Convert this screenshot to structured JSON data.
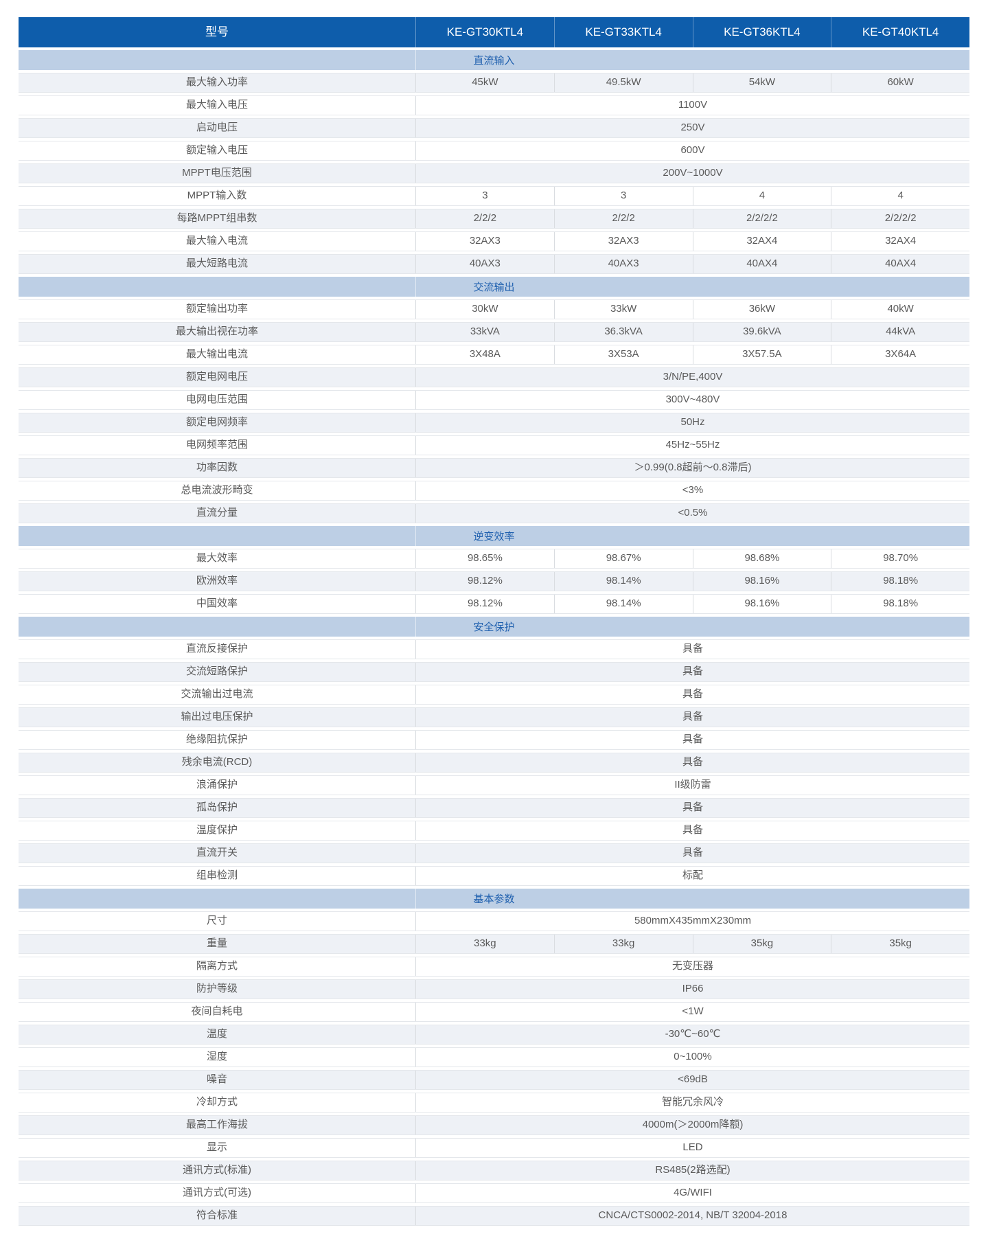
{
  "colors": {
    "header_bg": "#0e5dab",
    "header_text": "#ffffff",
    "section_bg": "#bdcfe5",
    "section_text": "#1e5fae",
    "row_alt_bg": "#eef1f6",
    "row_bg": "#ffffff",
    "text": "#5a5a5a",
    "divider": "#d9dce0"
  },
  "table": {
    "header": {
      "label": "型号",
      "models": [
        "KE-GT30KTL4",
        "KE-GT33KTL4",
        "KE-GT36KTL4",
        "KE-GT40KTL4"
      ]
    },
    "sections": [
      {
        "title": "直流输入",
        "rows": [
          {
            "label": "最大输入功率",
            "values": [
              "45kW",
              "49.5kW",
              "54kW",
              "60kW"
            ]
          },
          {
            "label": "最大输入电压",
            "values": [
              "1100V"
            ]
          },
          {
            "label": "启动电压",
            "values": [
              "250V"
            ]
          },
          {
            "label": "额定输入电压",
            "values": [
              "600V"
            ]
          },
          {
            "label": "MPPT电压范围",
            "values": [
              "200V~1000V"
            ]
          },
          {
            "label": "MPPT输入数",
            "values": [
              "3",
              "3",
              "4",
              "4"
            ]
          },
          {
            "label": "每路MPPT组串数",
            "values": [
              "2/2/2",
              "2/2/2",
              "2/2/2/2",
              "2/2/2/2"
            ]
          },
          {
            "label": "最大输入电流",
            "values": [
              "32AX3",
              "32AX3",
              "32AX4",
              "32AX4"
            ]
          },
          {
            "label": "最大短路电流",
            "values": [
              "40AX3",
              "40AX3",
              "40AX4",
              "40AX4"
            ]
          }
        ]
      },
      {
        "title": "交流输出",
        "rows": [
          {
            "label": "额定输出功率",
            "values": [
              "30kW",
              "33kW",
              "36kW",
              "40kW"
            ]
          },
          {
            "label": "最大输出视在功率",
            "values": [
              "33kVA",
              "36.3kVA",
              "39.6kVA",
              "44kVA"
            ]
          },
          {
            "label": "最大输出电流",
            "values": [
              "3X48A",
              "3X53A",
              "3X57.5A",
              "3X64A"
            ]
          },
          {
            "label": "额定电网电压",
            "values": [
              "3/N/PE,400V"
            ]
          },
          {
            "label": "电网电压范围",
            "values": [
              "300V~480V"
            ]
          },
          {
            "label": "额定电网频率",
            "values": [
              "50Hz"
            ]
          },
          {
            "label": "电网频率范围",
            "values": [
              "45Hz~55Hz"
            ]
          },
          {
            "label": "功率因数",
            "values": [
              "＞0.99(0.8超前～0.8滞后)"
            ]
          },
          {
            "label": "总电流波形畸变",
            "values": [
              "<3%"
            ]
          },
          {
            "label": "直流分量",
            "values": [
              "<0.5%"
            ]
          }
        ]
      },
      {
        "title": "逆变效率",
        "rows": [
          {
            "label": "最大效率",
            "values": [
              "98.65%",
              "98.67%",
              "98.68%",
              "98.70%"
            ]
          },
          {
            "label": "欧洲效率",
            "values": [
              "98.12%",
              "98.14%",
              "98.16%",
              "98.18%"
            ]
          },
          {
            "label": "中国效率",
            "values": [
              "98.12%",
              "98.14%",
              "98.16%",
              "98.18%"
            ]
          }
        ]
      },
      {
        "title": "安全保护",
        "rows": [
          {
            "label": "直流反接保护",
            "values": [
              "具备"
            ]
          },
          {
            "label": "交流短路保护",
            "values": [
              "具备"
            ]
          },
          {
            "label": "交流输出过电流",
            "values": [
              "具备"
            ]
          },
          {
            "label": "输出过电压保护",
            "values": [
              "具备"
            ]
          },
          {
            "label": "绝缘阻抗保护",
            "values": [
              "具备"
            ]
          },
          {
            "label": "残余电流(RCD)",
            "values": [
              "具备"
            ]
          },
          {
            "label": "浪涌保护",
            "values": [
              "II级防雷"
            ]
          },
          {
            "label": "孤岛保护",
            "values": [
              "具备"
            ]
          },
          {
            "label": "温度保护",
            "values": [
              "具备"
            ]
          },
          {
            "label": "直流开关",
            "values": [
              "具备"
            ]
          },
          {
            "label": "组串检测",
            "values": [
              "标配"
            ]
          }
        ]
      },
      {
        "title": "基本参数",
        "rows": [
          {
            "label": "尺寸",
            "values": [
              "580mmX435mmX230mm"
            ]
          },
          {
            "label": "重量",
            "values": [
              "33kg",
              "33kg",
              "35kg",
              "35kg"
            ]
          },
          {
            "label": "隔离方式",
            "values": [
              "无变压器"
            ]
          },
          {
            "label": "防护等级",
            "values": [
              "IP66"
            ]
          },
          {
            "label": "夜间自耗电",
            "values": [
              "<1W"
            ]
          },
          {
            "label": "温度",
            "values": [
              "-30℃~60℃"
            ]
          },
          {
            "label": "湿度",
            "values": [
              "0~100%"
            ]
          },
          {
            "label": "噪音",
            "values": [
              "<69dB"
            ]
          },
          {
            "label": "冷却方式",
            "values": [
              "智能冗余风冷"
            ]
          },
          {
            "label": "最高工作海拔",
            "values": [
              "4000m(＞2000m降额)"
            ]
          },
          {
            "label": "显示",
            "values": [
              "LED"
            ]
          },
          {
            "label": "通讯方式(标准)",
            "values": [
              "RS485(2路选配)"
            ]
          },
          {
            "label": "通讯方式(可选)",
            "values": [
              "4G/WIFI"
            ]
          },
          {
            "label": "符合标准",
            "values": [
              "CNCA/CTS0002-2014, NB/T 32004-2018"
            ]
          }
        ]
      }
    ]
  }
}
